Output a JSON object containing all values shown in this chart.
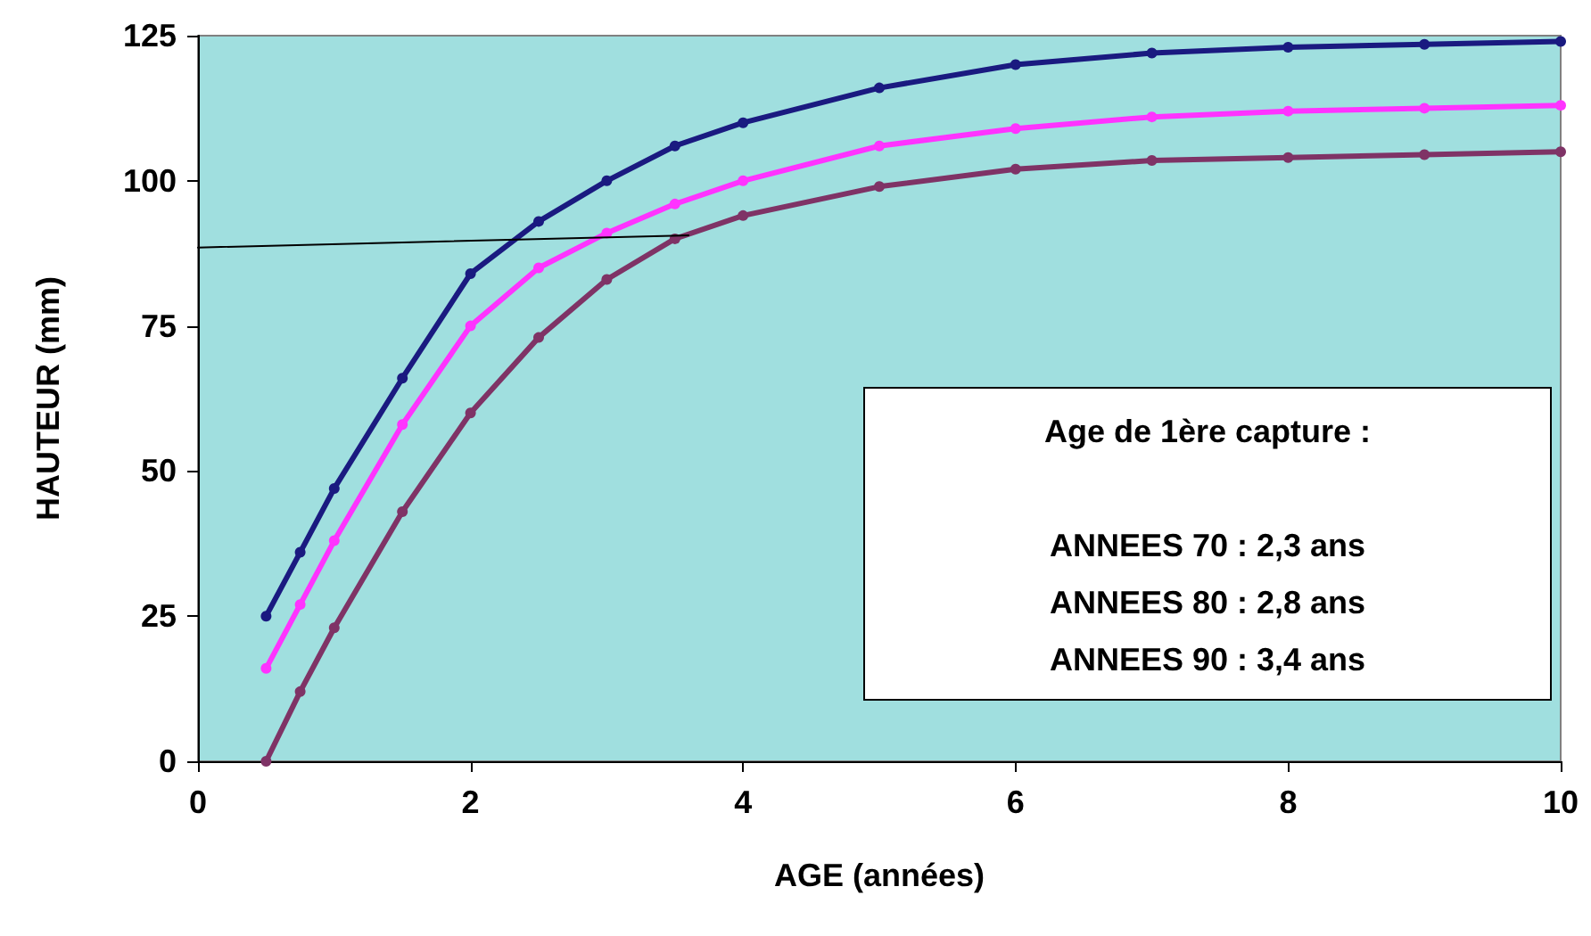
{
  "chart_data": {
    "type": "line",
    "xlabel": "AGE (années)",
    "ylabel": "HAUTEUR (mm)",
    "annotations": [
      "Age de 1ère capture :",
      "ANNEES 70 : 2,3 ans",
      "ANNEES 80 : 2,8 ans",
      "ANNEES 90 : 3,4 ans"
    ],
    "x": [
      0.5,
      0.75,
      1,
      1.5,
      2,
      2.5,
      3,
      3.5,
      4,
      5,
      6,
      7,
      8,
      9,
      10
    ],
    "series": [
      {
        "color": "#1a1a80",
        "values": [
          25,
          36,
          47,
          66,
          84,
          93,
          100,
          106,
          110,
          116,
          120,
          122,
          123,
          123.5,
          124
        ]
      },
      {
        "color": "#ff33ff",
        "values": [
          16,
          27,
          38,
          58,
          75,
          85,
          91,
          96,
          100,
          106,
          109,
          111,
          112,
          112.5,
          113
        ]
      },
      {
        "color": "#7f3366",
        "values": [
          0,
          12,
          23,
          43,
          60,
          73,
          83,
          90,
          94,
          99,
          102,
          103.5,
          104,
          104.5,
          105
        ]
      },
      {
        "color": "#000000",
        "x": [
          0,
          3.6
        ],
        "values": [
          88.5,
          90.6
        ],
        "marker": "none"
      }
    ],
    "xlim": [
      0,
      10
    ],
    "xticks": [
      0,
      2,
      4,
      6,
      8,
      10
    ],
    "ylim": [
      0,
      125
    ],
    "yticks": [
      0,
      25,
      50,
      75,
      100,
      125
    ],
    "marker": "circle",
    "line_style": "solid"
  }
}
